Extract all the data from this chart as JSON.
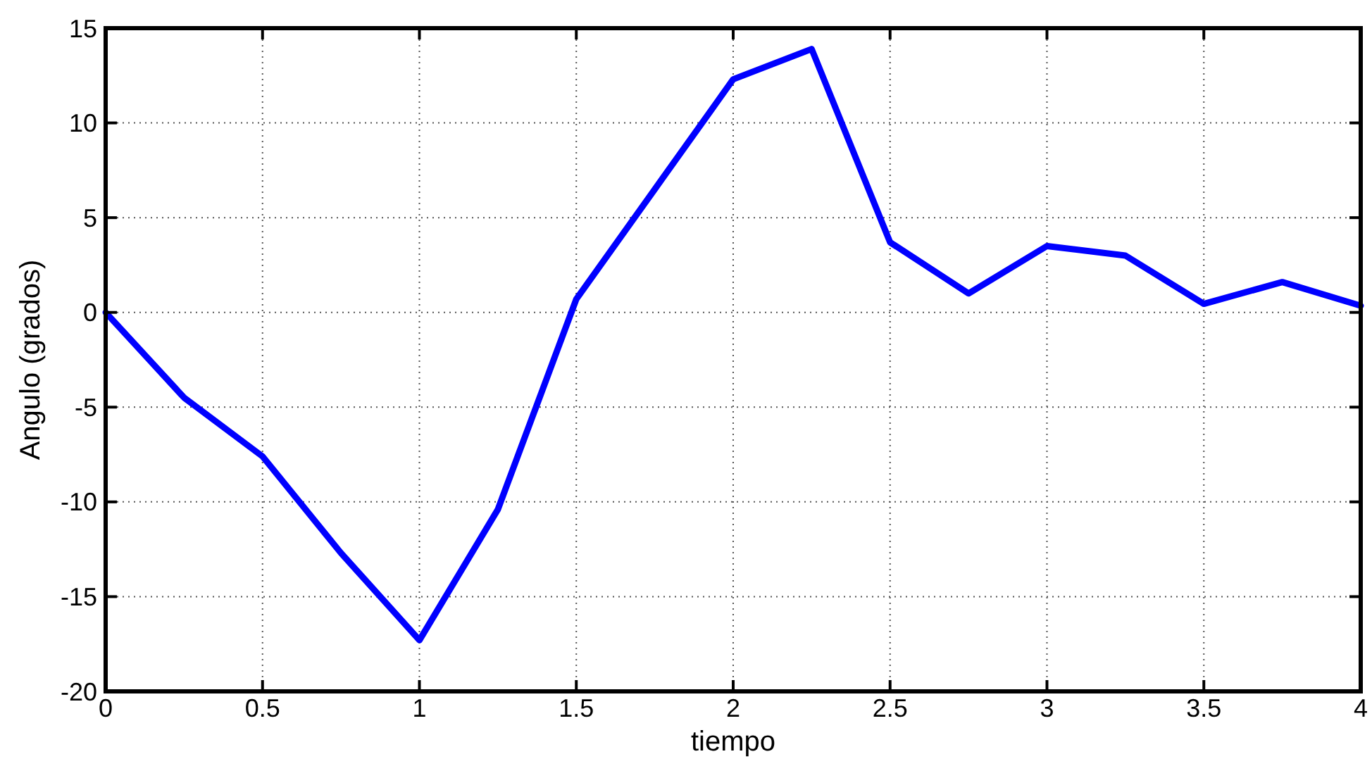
{
  "chart_data": {
    "type": "line",
    "xlabel": "tiempo",
    "ylabel": "Angulo (grados)",
    "x": [
      0,
      0.25,
      0.5,
      0.75,
      1,
      1.25,
      1.5,
      1.75,
      2,
      2.25,
      2.5,
      2.75,
      3,
      3.25,
      3.5,
      3.75,
      4
    ],
    "series": [
      {
        "color": "#0000ff",
        "values": [
          0,
          -4.5,
          -7.6,
          -12.7,
          -17.3,
          -10.4,
          0.7,
          6.5,
          12.3,
          13.9,
          3.7,
          1.0,
          3.5,
          3.0,
          0.45,
          1.6,
          0.35
        ]
      }
    ],
    "xlim": [
      0,
      4
    ],
    "xticks": [
      0,
      0.5,
      1,
      1.5,
      2,
      2.5,
      3,
      3.5,
      4
    ],
    "ylim": [
      -20,
      15
    ],
    "yticks": [
      -20,
      -15,
      -10,
      -5,
      0,
      5,
      10,
      15
    ],
    "grid": true,
    "line_style": "solid",
    "marker": "none"
  }
}
